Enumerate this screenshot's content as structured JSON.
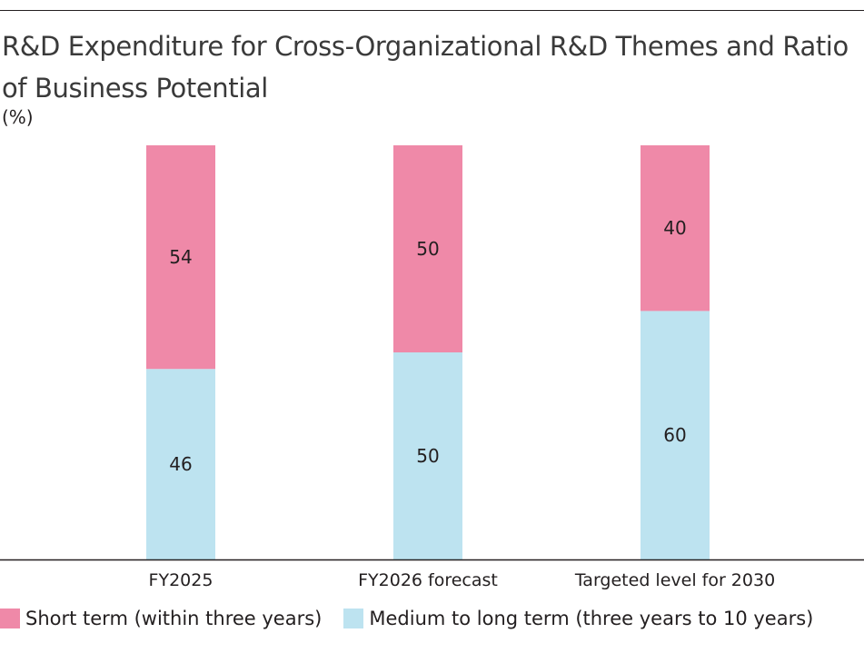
{
  "chart_data": {
    "type": "bar",
    "stacked": true,
    "title": "R&D Expenditure for Cross-Organizational R&D Themes and Ratio of Business Potential",
    "ylabel": "(%)",
    "xlabel": "",
    "categories": [
      "FY2025",
      "FY2026 forecast",
      "Targeted level for 2030"
    ],
    "ylim": [
      0,
      100
    ],
    "series": [
      {
        "name": "Medium to long term (three years to 10 years)",
        "values": [
          46,
          50,
          60
        ],
        "color": "#bde3f0"
      },
      {
        "name": "Short term (within three years)",
        "values": [
          54,
          50,
          40
        ],
        "color": "#ef89a8"
      }
    ],
    "legend_order": [
      1,
      0
    ]
  }
}
